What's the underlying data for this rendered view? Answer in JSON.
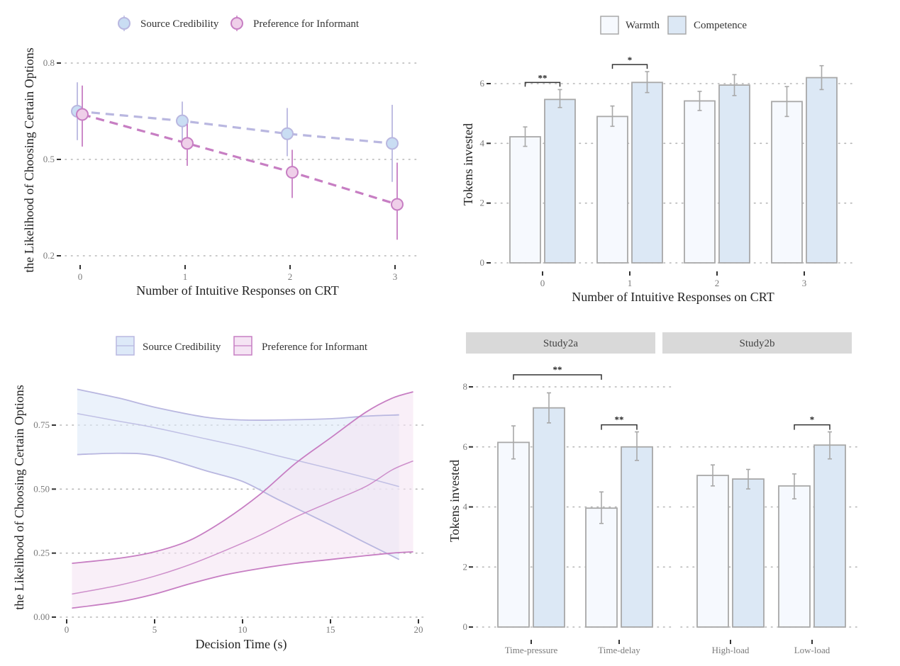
{
  "colors": {
    "sc_fill": "#c9ddf3",
    "sc_stroke": "#b9b7e0",
    "pi_fill": "#efcfe9",
    "pi_stroke": "#c77ec3",
    "warmth_fill": "#f6f9fe",
    "competence_fill": "#dce8f5",
    "bar_stroke": "#a8a8a8",
    "errorbar": "#a8a8a8",
    "sc_band": "#dde9f8",
    "pi_band": "#f5e4f4",
    "strip_bg": "#d9d9d9"
  },
  "chart_data": [
    {
      "id": "panel_a",
      "type": "line",
      "title": "",
      "xlabel": "Number of Intuitive Responses on CRT",
      "ylabel": "the Likelihood of Choosing Certain Options",
      "ylim": [
        0.2,
        0.8
      ],
      "yticks": [
        "0.2",
        "0.5",
        "0.8"
      ],
      "ytick_values": [
        0.2,
        0.5,
        0.8
      ],
      "categories": [
        "0",
        "1",
        "2",
        "3"
      ],
      "grid": true,
      "legend_position": "top",
      "series": [
        {
          "name": "Source Credibility",
          "key": "sc",
          "values": [
            0.65,
            0.62,
            0.58,
            0.55
          ],
          "lower": [
            0.56,
            0.56,
            0.51,
            0.43
          ],
          "upper": [
            0.74,
            0.68,
            0.66,
            0.67
          ]
        },
        {
          "name": "Preference for Informant",
          "key": "pi",
          "values": [
            0.64,
            0.55,
            0.46,
            0.36
          ],
          "lower": [
            0.54,
            0.48,
            0.38,
            0.25
          ],
          "upper": [
            0.73,
            0.61,
            0.53,
            0.49
          ]
        }
      ]
    },
    {
      "id": "panel_b",
      "type": "bar",
      "title": "",
      "xlabel": "Number of Intuitive Responses on CRT",
      "ylabel": "Tokens invested",
      "ylim": [
        0,
        6.9
      ],
      "yticks": [
        "0",
        "2",
        "4",
        "6"
      ],
      "ytick_values": [
        0,
        2,
        4,
        6
      ],
      "categories": [
        "0",
        "1",
        "2",
        "3"
      ],
      "grid": true,
      "legend_position": "top",
      "series": [
        {
          "name": "Warmth",
          "key": "warmth",
          "values": [
            4.22,
            4.9,
            5.42,
            5.4
          ],
          "lower": [
            3.9,
            4.57,
            5.1,
            4.9
          ],
          "upper": [
            4.55,
            5.25,
            5.74,
            5.9
          ]
        },
        {
          "name": "Competence",
          "key": "competence",
          "values": [
            5.47,
            6.04,
            5.95,
            6.2
          ],
          "lower": [
            5.2,
            5.7,
            5.6,
            5.8
          ],
          "upper": [
            5.8,
            6.4,
            6.3,
            6.6
          ]
        }
      ],
      "significance": [
        {
          "category_index": 0,
          "label": "**"
        },
        {
          "category_index": 1,
          "label": "*"
        }
      ]
    },
    {
      "id": "panel_c",
      "type": "area",
      "title": "",
      "xlabel": "Decision Time (s)",
      "ylabel": "the Likelihood of Choosing Certain Options",
      "xlim": [
        0,
        20
      ],
      "ylim": [
        0,
        0.93
      ],
      "xticks": [
        "0",
        "5",
        "10",
        "15",
        "20"
      ],
      "xtick_values": [
        0,
        5,
        10,
        15,
        20
      ],
      "yticks": [
        "0.00",
        "0.25",
        "0.50",
        "0.75"
      ],
      "ytick_values": [
        0,
        0.25,
        0.5,
        0.75
      ],
      "grid": true,
      "legend_position": "top",
      "series": [
        {
          "name": "Source Credibility",
          "key": "sc",
          "x": [
            0.6,
            3,
            5,
            8,
            10,
            12,
            15,
            17,
            18.9
          ],
          "fit": [
            0.795,
            0.765,
            0.74,
            0.695,
            0.665,
            0.63,
            0.58,
            0.545,
            0.51
          ],
          "lower": [
            0.635,
            0.64,
            0.63,
            0.57,
            0.53,
            0.46,
            0.36,
            0.29,
            0.225
          ],
          "upper": [
            0.89,
            0.855,
            0.82,
            0.78,
            0.77,
            0.77,
            0.775,
            0.785,
            0.79
          ]
        },
        {
          "name": "Preference for Informant",
          "key": "pi",
          "x": [
            0.3,
            3,
            5,
            7,
            9,
            11,
            13,
            15,
            17,
            18.5,
            19.7
          ],
          "fit": [
            0.09,
            0.125,
            0.16,
            0.205,
            0.26,
            0.32,
            0.39,
            0.45,
            0.51,
            0.575,
            0.61
          ],
          "lower": [
            0.035,
            0.06,
            0.09,
            0.13,
            0.165,
            0.19,
            0.21,
            0.225,
            0.24,
            0.25,
            0.255
          ],
          "upper": [
            0.21,
            0.23,
            0.255,
            0.3,
            0.38,
            0.48,
            0.6,
            0.7,
            0.8,
            0.855,
            0.88
          ]
        }
      ]
    },
    {
      "id": "panel_d",
      "type": "bar",
      "title": "",
      "xlabel": "",
      "ylabel": "Tokens invested",
      "ylim": [
        0,
        8.3
      ],
      "yticks": [
        "0",
        "2",
        "4",
        "6",
        "8"
      ],
      "ytick_values": [
        0,
        2,
        4,
        6,
        8
      ],
      "grid": true,
      "facets": [
        {
          "label": "Study2a",
          "categories": [
            "Time-pressure",
            "Time-delay"
          ],
          "series": [
            {
              "name": "Warmth",
              "key": "warmth",
              "values": [
                6.15,
                3.96
              ],
              "lower": [
                5.6,
                3.45
              ],
              "upper": [
                6.7,
                4.5
              ]
            },
            {
              "name": "Competence",
              "key": "competence",
              "values": [
                7.3,
                6.0
              ],
              "lower": [
                6.8,
                5.55
              ],
              "upper": [
                7.8,
                6.5
              ]
            }
          ],
          "significance": [
            {
              "type": "between",
              "from": "Time-pressure Warmth",
              "to": "Time-delay Warmth",
              "label": "**"
            },
            {
              "type": "within",
              "category_index": 1,
              "label": "**"
            }
          ]
        },
        {
          "label": "Study2b",
          "categories": [
            "High-load",
            "Low-load"
          ],
          "series": [
            {
              "name": "Warmth",
              "key": "warmth",
              "values": [
                5.05,
                4.7
              ],
              "lower": [
                4.7,
                4.27
              ],
              "upper": [
                5.4,
                5.1
              ]
            },
            {
              "name": "Competence",
              "key": "competence",
              "values": [
                4.93,
                6.06
              ],
              "lower": [
                4.6,
                5.6
              ],
              "upper": [
                5.25,
                6.5
              ]
            }
          ],
          "significance": [
            {
              "type": "within",
              "category_index": 1,
              "label": "*"
            }
          ]
        }
      ]
    }
  ]
}
